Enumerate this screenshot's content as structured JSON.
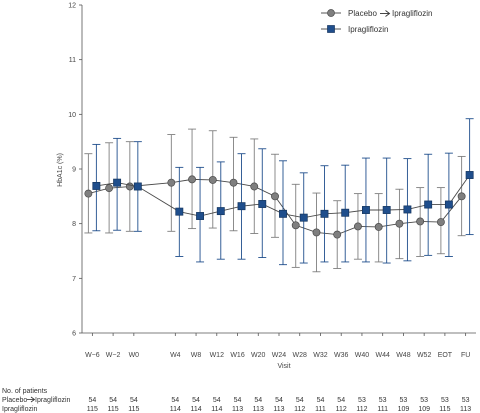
{
  "chart_data": {
    "type": "line",
    "ylabel": "HbA1c (%)",
    "xlabel": "Visit",
    "ylim": [
      6,
      12
    ],
    "yticks": [
      6,
      7,
      8,
      9,
      10,
      11,
      12
    ],
    "categories": [
      "W−6",
      "W−2",
      "W0",
      "W4",
      "W8",
      "W12",
      "W16",
      "W20",
      "W24",
      "W28",
      "W32",
      "W36",
      "W40",
      "W44",
      "W48",
      "W52",
      "EOT",
      "FU"
    ],
    "x": [
      0,
      1,
      2,
      4,
      5,
      6,
      7,
      8,
      9,
      10,
      11,
      12,
      13,
      14,
      15,
      16,
      17,
      18
    ],
    "legend_position": "top-right",
    "series": [
      {
        "name": "Placebo",
        "name_suffix": "Ipragliflozin",
        "color": "#7f7f7f",
        "marker": "circle",
        "values": [
          8.55,
          8.65,
          8.68,
          8.75,
          8.81,
          8.8,
          8.75,
          8.68,
          8.5,
          7.97,
          7.84,
          7.8,
          7.95,
          7.94,
          8.0,
          8.04,
          8.03,
          8.5
        ],
        "lower": [
          7.83,
          7.83,
          7.86,
          7.86,
          7.91,
          7.92,
          7.87,
          7.82,
          7.75,
          7.2,
          7.12,
          7.18,
          7.35,
          7.3,
          7.36,
          7.4,
          7.45,
          7.78
        ],
        "upper": [
          9.28,
          9.48,
          9.5,
          9.63,
          9.73,
          9.7,
          9.58,
          9.55,
          9.27,
          8.72,
          8.56,
          8.42,
          8.55,
          8.55,
          8.63,
          8.66,
          8.66,
          9.23
        ]
      },
      {
        "name": "Ipragliflozin",
        "color": "#1f4e8c",
        "marker": "square",
        "values": [
          8.69,
          8.75,
          8.68,
          8.22,
          8.14,
          8.23,
          8.32,
          8.36,
          8.18,
          8.11,
          8.18,
          8.2,
          8.25,
          8.25,
          8.26,
          8.35,
          8.35,
          8.89
        ],
        "lower": [
          7.87,
          7.88,
          7.86,
          7.4,
          7.3,
          7.35,
          7.35,
          7.38,
          7.25,
          7.28,
          7.3,
          7.3,
          7.3,
          7.28,
          7.32,
          7.42,
          7.4,
          7.8
        ],
        "upper": [
          9.45,
          9.56,
          9.5,
          9.03,
          9.03,
          9.13,
          9.28,
          9.37,
          9.15,
          8.93,
          9.06,
          9.07,
          9.2,
          9.2,
          9.19,
          9.27,
          9.29,
          9.92
        ]
      }
    ],
    "patients_table": {
      "title": "No. of patients",
      "rows": [
        {
          "label": "Placebo",
          "label_suffix": "Ipragliflozin",
          "values": [
            "54",
            "54",
            "54",
            "54",
            "54",
            "54",
            "54",
            "54",
            "54",
            "54",
            "54",
            "54",
            "53",
            "53",
            "53",
            "53",
            "53",
            "53"
          ]
        },
        {
          "label": "Ipragliflozin",
          "values": [
            "115",
            "115",
            "115",
            "114",
            "114",
            "114",
            "113",
            "113",
            "113",
            "112",
            "111",
            "112",
            "112",
            "111",
            "109",
            "109",
            "115",
            "113"
          ]
        }
      ]
    }
  }
}
